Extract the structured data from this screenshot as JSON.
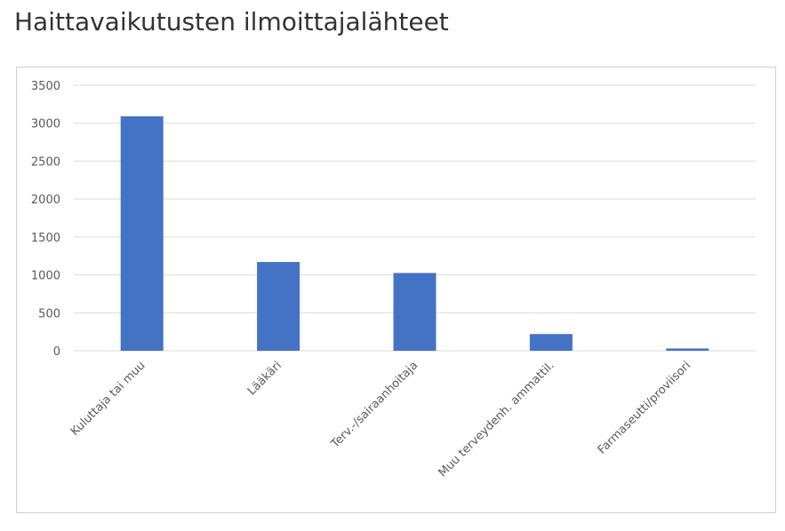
{
  "chart_data": {
    "type": "bar",
    "title": "Haittavaikutusten ilmoittajalähteet",
    "categories": [
      "Kuluttaja tai muu",
      "Lääkäri",
      "Terv.-/sairaanhoitaja",
      "Muu terveydenh. ammattil.",
      "Farmaseutti/proviisori"
    ],
    "values": [
      3090,
      1170,
      1025,
      220,
      30
    ],
    "color": "#4472c4",
    "ylim": [
      0,
      3500
    ],
    "yticks": [
      0,
      500,
      1000,
      1500,
      2000,
      2500,
      3000,
      3500
    ],
    "grid": true
  }
}
